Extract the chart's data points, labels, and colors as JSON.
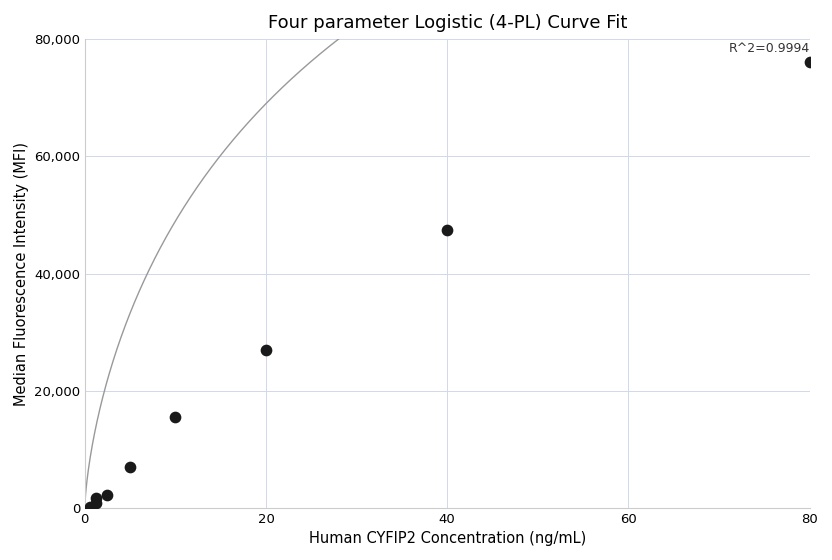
{
  "title": "Four parameter Logistic (4-PL) Curve Fit",
  "xlabel": "Human CYFIP2 Concentration (ng/mL)",
  "ylabel": "Median Fluorescence Intensity (MFI)",
  "scatter_x": [
    0.625,
    1.25,
    1.25,
    2.5,
    5.0,
    10.0,
    20.0,
    40.0,
    80.0
  ],
  "scatter_y": [
    300,
    1000,
    1800,
    2200,
    7000,
    15500,
    27000,
    47500,
    76000
  ],
  "xlim": [
    0,
    80
  ],
  "ylim": [
    0,
    80000
  ],
  "xticks": [
    0,
    20,
    40,
    60,
    80
  ],
  "yticks": [
    0,
    20000,
    40000,
    60000,
    80000
  ],
  "r_squared": "R^2=0.9994",
  "dot_color": "#1a1a1a",
  "line_color": "#999999",
  "grid_color": "#d0d8ea",
  "background_color": "#ffffff",
  "title_fontsize": 13,
  "label_fontsize": 10.5,
  "tick_fontsize": 9.5,
  "annotation_fontsize": 9
}
